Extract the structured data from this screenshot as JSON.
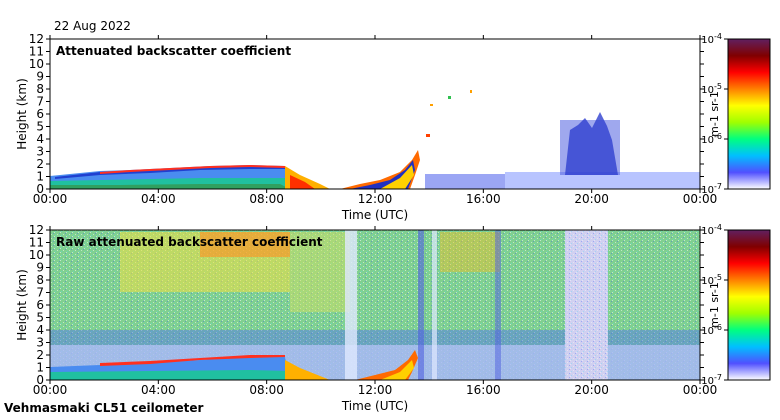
{
  "date": "22 Aug 2022",
  "footer": "Vehmasmaki CL51 ceilometer",
  "colorbar": {
    "stops": [
      "#ffffff",
      "#5050ff",
      "#00c0ff",
      "#00ff80",
      "#a0ff00",
      "#ffff00",
      "#ff8000",
      "#ff0000",
      "#800000",
      "#602060"
    ]
  },
  "chart_data": [
    {
      "type": "heatmap",
      "title": "Attenuated backscatter coefficient",
      "xlabel": "Time (UTC)",
      "ylabel": "Height (km)",
      "xticks": [
        "00:00",
        "04:00",
        "08:00",
        "12:00",
        "16:00",
        "20:00",
        "00:00"
      ],
      "yticks": [
        "0",
        "1",
        "2",
        "3",
        "4",
        "5",
        "6",
        "7",
        "8",
        "9",
        "10",
        "11",
        "12"
      ],
      "ylim": [
        0,
        12
      ],
      "colorbar_label": "m-1 sr-1",
      "colorbar_ticks": [
        "10-7",
        "10-6",
        "10-5",
        "10-4"
      ],
      "colorbar_range": [
        1e-07,
        0.0001
      ],
      "scale": "log"
    },
    {
      "type": "heatmap",
      "title": "Raw attenuated backscatter coefficient",
      "xlabel": "Time (UTC)",
      "ylabel": "Height (km)",
      "xticks": [
        "00:00",
        "04:00",
        "08:00",
        "12:00",
        "16:00",
        "20:00",
        "00:00"
      ],
      "yticks": [
        "0",
        "1",
        "2",
        "3",
        "4",
        "5",
        "6",
        "7",
        "8",
        "9",
        "10",
        "11",
        "12"
      ],
      "ylim": [
        0,
        12
      ],
      "colorbar_label": "m-1 sr-1",
      "colorbar_ticks": [
        "10-7",
        "10-6",
        "10-5",
        "10-4"
      ],
      "colorbar_range": [
        1e-07,
        0.0001
      ],
      "scale": "log"
    }
  ]
}
